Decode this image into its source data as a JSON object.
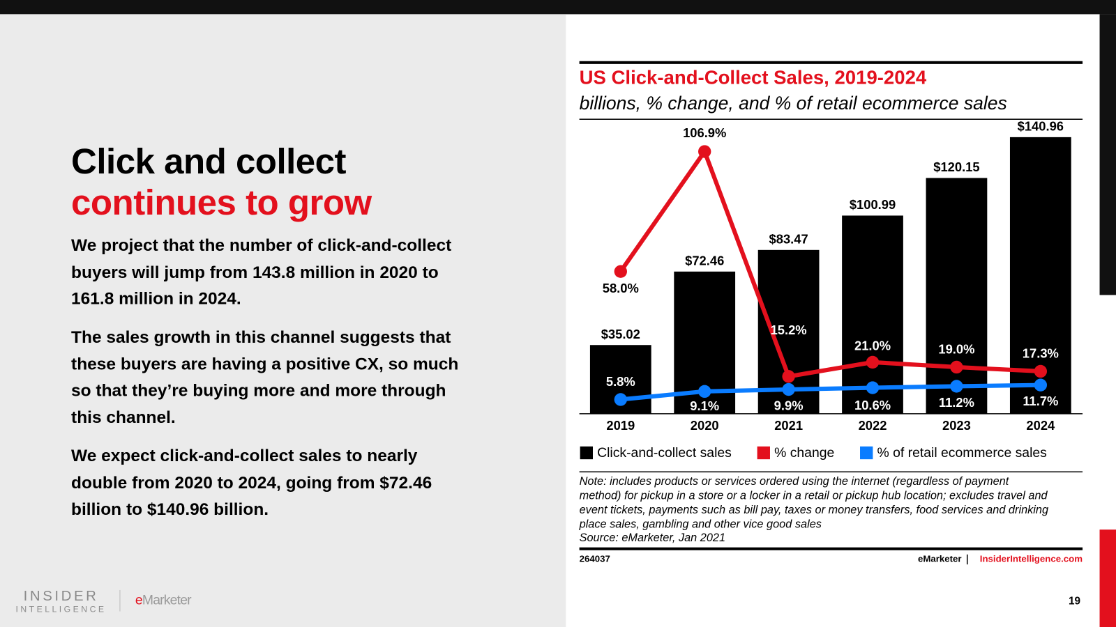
{
  "slide": {
    "title_line1": "Click and collect",
    "title_line2": "continues to grow",
    "paragraphs": [
      [
        "We project that the number of click-and-collect",
        "buyers will jump from 143.8 million in 2020 to",
        "161.8 million in 2024."
      ],
      [
        "The sales growth in this channel suggests that",
        "these buyers are having a positive CX, so much",
        "so that they’re buying more and more through",
        "this channel."
      ],
      [
        "We expect click-and-collect sales to nearly",
        "double from 2020 to 2024, going from $72.46",
        "billion to $140.96 billion."
      ]
    ],
    "logo_line1": "INSIDER",
    "logo_line2": "INTELLIGENCE",
    "logo_brand": "eMarketer",
    "page_number": "19"
  },
  "chart_data": {
    "type": "bar",
    "title": "US Click-and-Collect Sales, 2019-2024",
    "subtitle": "billions, % change, and % of retail ecommerce sales",
    "categories": [
      "2019",
      "2020",
      "2021",
      "2022",
      "2023",
      "2024"
    ],
    "ylim": [
      0,
      150
    ],
    "y2lim": [
      0,
      120
    ],
    "series": [
      {
        "name": "Click-and-collect sales",
        "type": "bar",
        "color": "#000000",
        "values": [
          35.02,
          72.46,
          83.47,
          100.99,
          120.15,
          140.96
        ],
        "value_labels": [
          "$35.02",
          "$72.46",
          "$83.47",
          "$100.99",
          "$120.15",
          "$140.96"
        ]
      },
      {
        "name": "% change",
        "type": "line",
        "axis": "y2",
        "color": "#e3101d",
        "values": [
          58.0,
          106.9,
          15.2,
          21.0,
          19.0,
          17.3
        ],
        "value_labels": [
          "58.0%",
          "106.9%",
          "15.2%",
          "21.0%",
          "19.0%",
          "17.3%"
        ]
      },
      {
        "name": "% of retail ecommerce sales",
        "type": "line",
        "axis": "y2",
        "color": "#0a7cff",
        "values": [
          5.8,
          9.1,
          9.9,
          10.6,
          11.2,
          11.7
        ],
        "value_labels": [
          "5.8%",
          "9.1%",
          "9.9%",
          "10.6%",
          "11.2%",
          "11.7%"
        ]
      }
    ],
    "note": [
      "Note: includes products or services ordered using the internet (regardless of payment",
      "method) for pickup in a store or a locker in a retail or pickup hub location; excludes travel and",
      "event tickets, payments such as bill pay, taxes or money transfers, food services and drinking",
      "place sales, gambling and other vice good sales"
    ],
    "source": "Source: eMarketer, Jan 2021",
    "chart_id": "264037",
    "footer_brand": "eMarketer",
    "footer_site": "InsiderIntelligence.com"
  }
}
